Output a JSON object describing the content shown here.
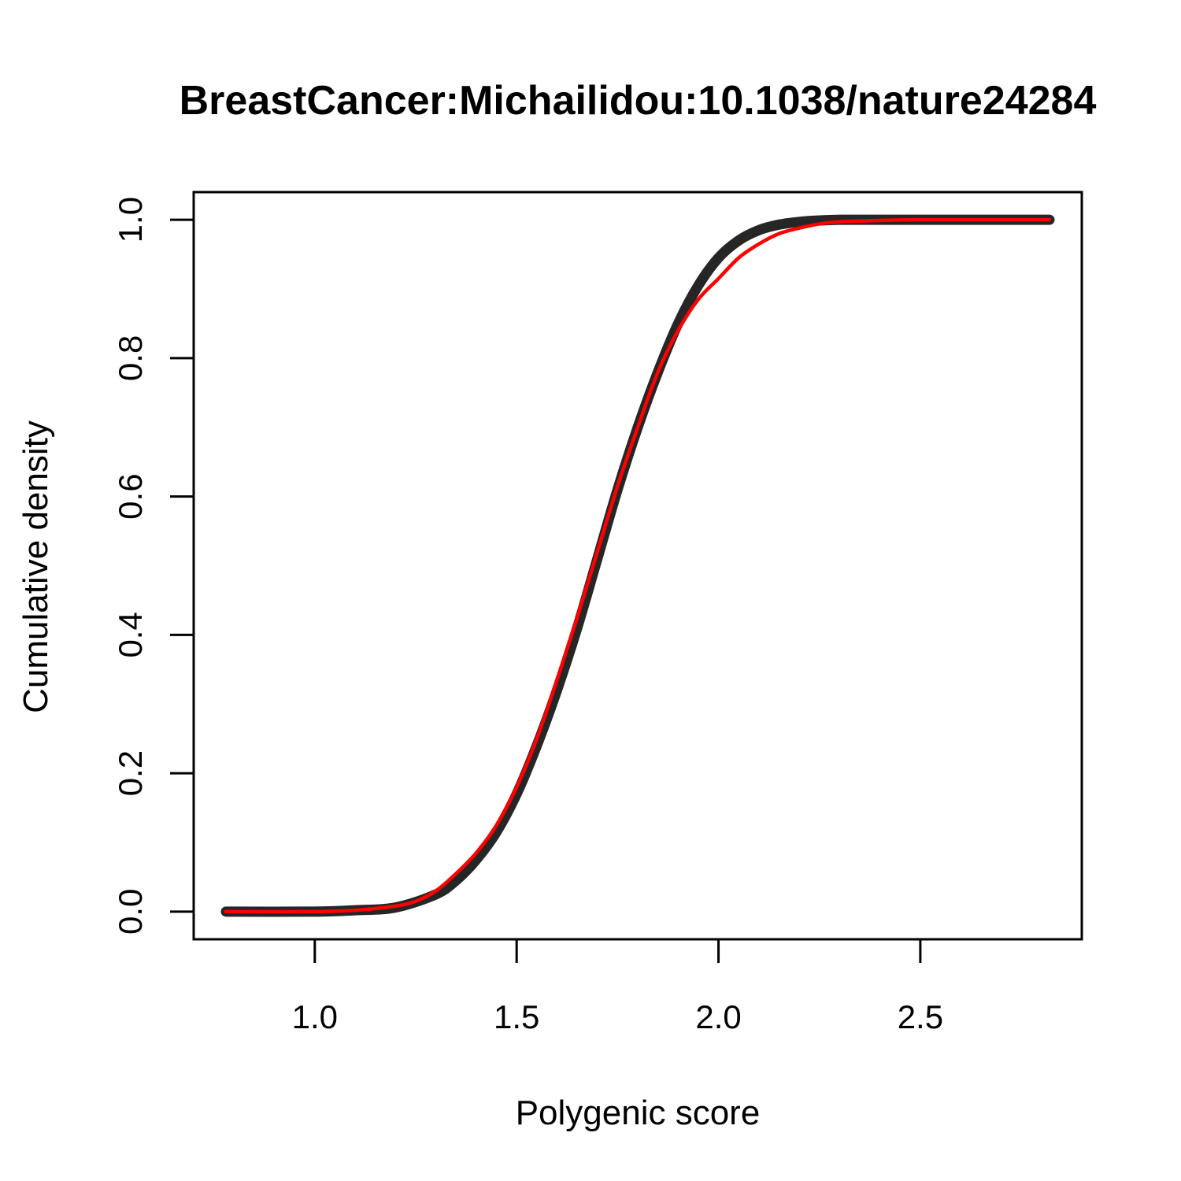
{
  "chart_data": {
    "type": "line",
    "title": "BreastCancer:Michailidou:10.1038/nature24284",
    "xlabel": "Polygenic score",
    "ylabel": "Cumulative density",
    "xlim": [
      0.7,
      2.9
    ],
    "ylim": [
      -0.04,
      1.04
    ],
    "x_ticks": [
      1.0,
      1.5,
      2.0,
      2.5
    ],
    "x_tick_labels": [
      "1.0",
      "1.5",
      "2.0",
      "2.5"
    ],
    "y_ticks": [
      0.0,
      0.2,
      0.4,
      0.6,
      0.8,
      1.0
    ],
    "y_tick_labels": [
      "0.0",
      "0.2",
      "0.4",
      "0.6",
      "0.8",
      "1.0"
    ],
    "grid": false,
    "legend": "none",
    "series": [
      {
        "color": "#000000",
        "style": "thick-band",
        "x": [
          0.78,
          1.0,
          1.1,
          1.2,
          1.3,
          1.35,
          1.4,
          1.45,
          1.5,
          1.55,
          1.6,
          1.65,
          1.7,
          1.75,
          1.8,
          1.85,
          1.9,
          1.95,
          2.0,
          2.05,
          2.1,
          2.15,
          2.2,
          2.25,
          2.3,
          2.35,
          2.5,
          2.82
        ],
        "y": [
          0.0,
          0.0,
          0.002,
          0.006,
          0.025,
          0.045,
          0.075,
          0.115,
          0.17,
          0.24,
          0.32,
          0.41,
          0.51,
          0.61,
          0.7,
          0.78,
          0.85,
          0.905,
          0.945,
          0.97,
          0.985,
          0.993,
          0.997,
          0.999,
          1.0,
          1.0,
          1.0,
          1.0
        ]
      },
      {
        "color": "#ff0000",
        "style": "line",
        "x": [
          0.78,
          1.0,
          1.1,
          1.2,
          1.25,
          1.3,
          1.35,
          1.4,
          1.45,
          1.5,
          1.55,
          1.6,
          1.65,
          1.7,
          1.75,
          1.8,
          1.85,
          1.9,
          1.95,
          2.0,
          2.05,
          2.1,
          2.15,
          2.2,
          2.25,
          2.3,
          2.4,
          2.5,
          2.82
        ],
        "y": [
          0.0,
          0.0,
          0.002,
          0.008,
          0.015,
          0.03,
          0.055,
          0.085,
          0.125,
          0.18,
          0.25,
          0.335,
          0.425,
          0.52,
          0.615,
          0.7,
          0.78,
          0.84,
          0.885,
          0.915,
          0.945,
          0.965,
          0.98,
          0.988,
          0.994,
          0.997,
          0.999,
          1.0,
          1.0
        ]
      }
    ]
  }
}
